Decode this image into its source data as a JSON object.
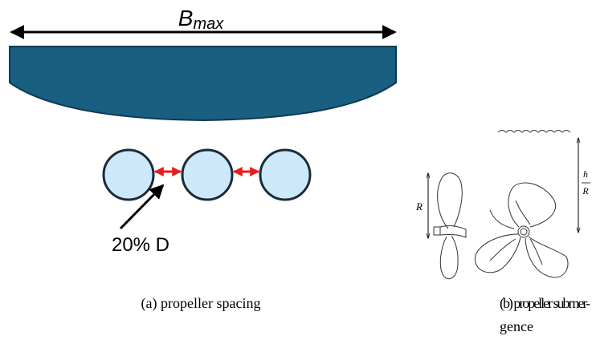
{
  "panel_a": {
    "width_label": {
      "main": "B",
      "sub": "max"
    },
    "spacing_label": "20% D",
    "caption": "(a) propeller spacing"
  },
  "panel_b": {
    "radius_label": "R",
    "depth_label": {
      "numerator": "h",
      "denominator": "R"
    },
    "caption_lines": [
      "(b) propeller submer-",
      "gence"
    ]
  }
}
